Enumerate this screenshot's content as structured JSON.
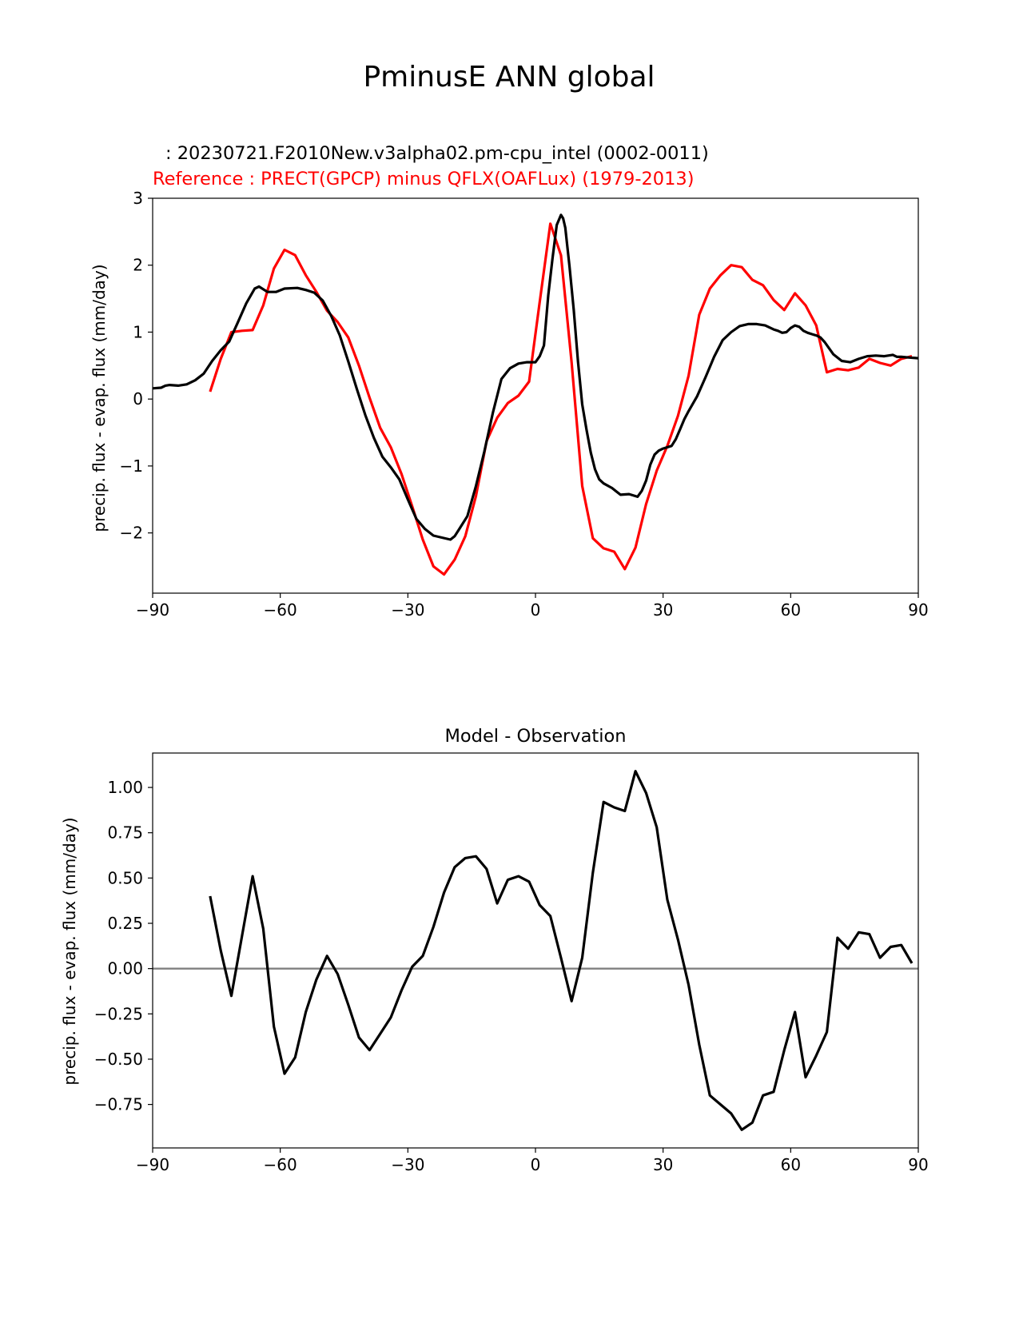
{
  "figure_title": "PminusE ANN global",
  "colors": {
    "model": "#000000",
    "reference": "#ff0000",
    "zero_line": "#808080"
  },
  "chart_data": [
    {
      "type": "line",
      "test_label": ": 20230721.F2010New.v3alpha02.pm-cpu_intel (0002-0011)",
      "ref_label": "Reference : PRECT(GPCP) minus QFLX(OAFLux) (1979-2013)",
      "xlabel": "",
      "ylabel": "precip. flux - evap. flux (mm/day)",
      "xlim": [
        -90,
        90
      ],
      "ylim": [
        -2.9,
        3
      ],
      "xticks": [
        -90,
        -60,
        -30,
        0,
        30,
        60,
        90
      ],
      "xtick_labels": [
        "−90",
        "−60",
        "−30",
        "0",
        "30",
        "60",
        "90"
      ],
      "yticks": [
        -2,
        -1,
        0,
        1,
        2,
        3
      ],
      "ytick_labels": [
        "−2",
        "−1",
        "0",
        "1",
        "2",
        "3"
      ],
      "series": [
        {
          "name": "model",
          "x": [
            -90,
            -88,
            -87,
            -86,
            -84,
            -82,
            -80,
            -78,
            -76,
            -74,
            -72,
            -70,
            -68,
            -66,
            -65,
            -63,
            -61,
            -59,
            -56,
            -54,
            -52,
            -50,
            -48,
            -46,
            -44,
            -42,
            -40,
            -38,
            -36,
            -34,
            -32,
            -30,
            -28,
            -26,
            -24,
            -22,
            -20,
            -19,
            -18,
            -16,
            -14,
            -12,
            -10,
            -8,
            -6,
            -4,
            -2,
            0,
            1,
            2,
            3,
            4,
            5,
            6,
            6.5,
            7,
            8,
            9,
            10,
            11,
            12,
            13,
            14,
            15,
            16,
            18,
            19,
            20,
            22,
            24,
            25,
            26,
            27,
            28,
            29,
            30,
            32,
            33,
            34,
            35,
            36,
            38,
            40,
            42,
            44,
            46,
            48,
            50,
            52,
            54,
            56,
            57,
            58,
            59,
            60,
            61,
            62,
            63,
            64,
            65,
            66,
            67,
            68,
            70,
            72,
            74,
            76,
            78,
            80,
            82,
            84,
            85,
            86,
            88,
            90
          ],
          "y": [
            0.16,
            0.17,
            0.2,
            0.21,
            0.2,
            0.22,
            0.28,
            0.38,
            0.57,
            0.73,
            0.86,
            1.14,
            1.43,
            1.65,
            1.68,
            1.6,
            1.6,
            1.65,
            1.66,
            1.63,
            1.59,
            1.47,
            1.24,
            0.95,
            0.56,
            0.15,
            -0.24,
            -0.58,
            -0.86,
            -1.02,
            -1.2,
            -1.5,
            -1.79,
            -1.94,
            -2.04,
            -2.07,
            -2.1,
            -2.05,
            -1.95,
            -1.75,
            -1.3,
            -0.78,
            -0.2,
            0.3,
            0.46,
            0.53,
            0.55,
            0.55,
            0.64,
            0.8,
            1.55,
            2.1,
            2.6,
            2.75,
            2.7,
            2.56,
            1.98,
            1.33,
            0.56,
            -0.08,
            -0.46,
            -0.8,
            -1.05,
            -1.2,
            -1.26,
            -1.33,
            -1.38,
            -1.43,
            -1.42,
            -1.46,
            -1.37,
            -1.22,
            -0.98,
            -0.83,
            -0.77,
            -0.74,
            -0.7,
            -0.6,
            -0.45,
            -0.3,
            -0.18,
            0.04,
            0.33,
            0.63,
            0.88,
            1.0,
            1.09,
            1.12,
            1.12,
            1.1,
            1.04,
            1.02,
            0.99,
            1.0,
            1.06,
            1.1,
            1.08,
            1.02,
            0.99,
            0.97,
            0.95,
            0.92,
            0.85,
            0.67,
            0.57,
            0.55,
            0.6,
            0.64,
            0.65,
            0.64,
            0.66,
            0.63,
            0.63,
            0.62,
            0.61
          ]
        },
        {
          "name": "reference",
          "x": [
            -76.5,
            -74,
            -71.5,
            -69,
            -66.5,
            -64,
            -61.5,
            -59,
            -56.5,
            -54,
            -51.5,
            -49,
            -46.5,
            -44,
            -41.5,
            -39,
            -36.5,
            -34,
            -31.5,
            -29,
            -26.5,
            -24,
            -21.5,
            -19,
            -16.5,
            -14,
            -11.5,
            -9,
            -6.5,
            -4,
            -1.5,
            1,
            3.5,
            6,
            8.5,
            11,
            13.5,
            16,
            18.5,
            21,
            23.5,
            26,
            28.5,
            31,
            33.5,
            36,
            38.5,
            41,
            43.5,
            46,
            48.5,
            51,
            53.5,
            56,
            58.5,
            61,
            63.5,
            66,
            68.5,
            71,
            73.5,
            76,
            78.5,
            81,
            83.5,
            86,
            88.5
          ],
          "y": [
            0.11,
            0.6,
            1.0,
            1.02,
            1.03,
            1.4,
            1.95,
            2.23,
            2.15,
            1.85,
            1.6,
            1.32,
            1.15,
            0.92,
            0.5,
            0.02,
            -0.43,
            -0.72,
            -1.12,
            -1.6,
            -2.1,
            -2.5,
            -2.62,
            -2.4,
            -2.05,
            -1.45,
            -0.63,
            -0.28,
            -0.06,
            0.05,
            0.26,
            1.45,
            2.62,
            2.15,
            0.55,
            -1.3,
            -2.08,
            -2.23,
            -2.28,
            -2.54,
            -2.22,
            -1.57,
            -1.07,
            -0.7,
            -0.25,
            0.35,
            1.26,
            1.65,
            1.85,
            2.0,
            1.97,
            1.78,
            1.7,
            1.48,
            1.33,
            1.58,
            1.4,
            1.1,
            0.4,
            0.45,
            0.43,
            0.47,
            0.6,
            0.54,
            0.5,
            0.6,
            0.64
          ]
        }
      ]
    },
    {
      "type": "line",
      "title": "Model - Observation",
      "xlabel": "",
      "ylabel": "precip. flux - evap. flux (mm/day)",
      "xlim": [
        -90,
        90
      ],
      "ylim": [
        -0.99,
        1.19
      ],
      "xticks": [
        -90,
        -60,
        -30,
        0,
        30,
        60,
        90
      ],
      "xtick_labels": [
        "−90",
        "−60",
        "−30",
        "0",
        "30",
        "60",
        "90"
      ],
      "yticks": [
        -0.75,
        -0.5,
        -0.25,
        0,
        0.25,
        0.5,
        0.75,
        1.0
      ],
      "ytick_labels": [
        "−0.75",
        "−0.50",
        "−0.25",
        "0.00",
        "0.25",
        "0.50",
        "0.75",
        "1.00"
      ],
      "zero_line": 0,
      "series": [
        {
          "name": "difference",
          "x": [
            -76.5,
            -74,
            -71.5,
            -69,
            -66.5,
            -64,
            -61.5,
            -59,
            -56.5,
            -54,
            -51.5,
            -49,
            -46.5,
            -44,
            -41.5,
            -39,
            -36.5,
            -34,
            -31.5,
            -29,
            -26.5,
            -24,
            -21.5,
            -19,
            -16.5,
            -14,
            -11.5,
            -9,
            -6.5,
            -4,
            -1.5,
            1,
            3.5,
            6,
            8.5,
            11,
            13.5,
            16,
            18.5,
            21,
            23.5,
            26,
            28.5,
            31,
            33.5,
            36,
            38.5,
            41,
            43.5,
            46,
            48.5,
            51,
            53.5,
            56,
            58.5,
            61,
            63.5,
            66,
            68.5,
            71,
            73.5,
            76,
            78.5,
            81,
            83.5,
            86,
            88.5
          ],
          "y": [
            0.4,
            0.1,
            -0.15,
            0.18,
            0.51,
            0.22,
            -0.32,
            -0.58,
            -0.49,
            -0.24,
            -0.06,
            0.07,
            -0.03,
            -0.2,
            -0.38,
            -0.45,
            -0.36,
            -0.27,
            -0.12,
            0.01,
            0.07,
            0.23,
            0.42,
            0.56,
            0.61,
            0.62,
            0.55,
            0.36,
            0.49,
            0.51,
            0.48,
            0.35,
            0.29,
            0.06,
            -0.18,
            0.06,
            0.53,
            0.92,
            0.89,
            0.87,
            1.09,
            0.97,
            0.78,
            0.38,
            0.16,
            -0.09,
            -0.42,
            -0.7,
            -0.75,
            -0.8,
            -0.89,
            -0.85,
            -0.7,
            -0.68,
            -0.45,
            -0.24,
            -0.6,
            -0.48,
            -0.35,
            0.17,
            0.11,
            0.2,
            0.19,
            0.06,
            0.12,
            0.13,
            0.03
          ]
        }
      ]
    }
  ]
}
